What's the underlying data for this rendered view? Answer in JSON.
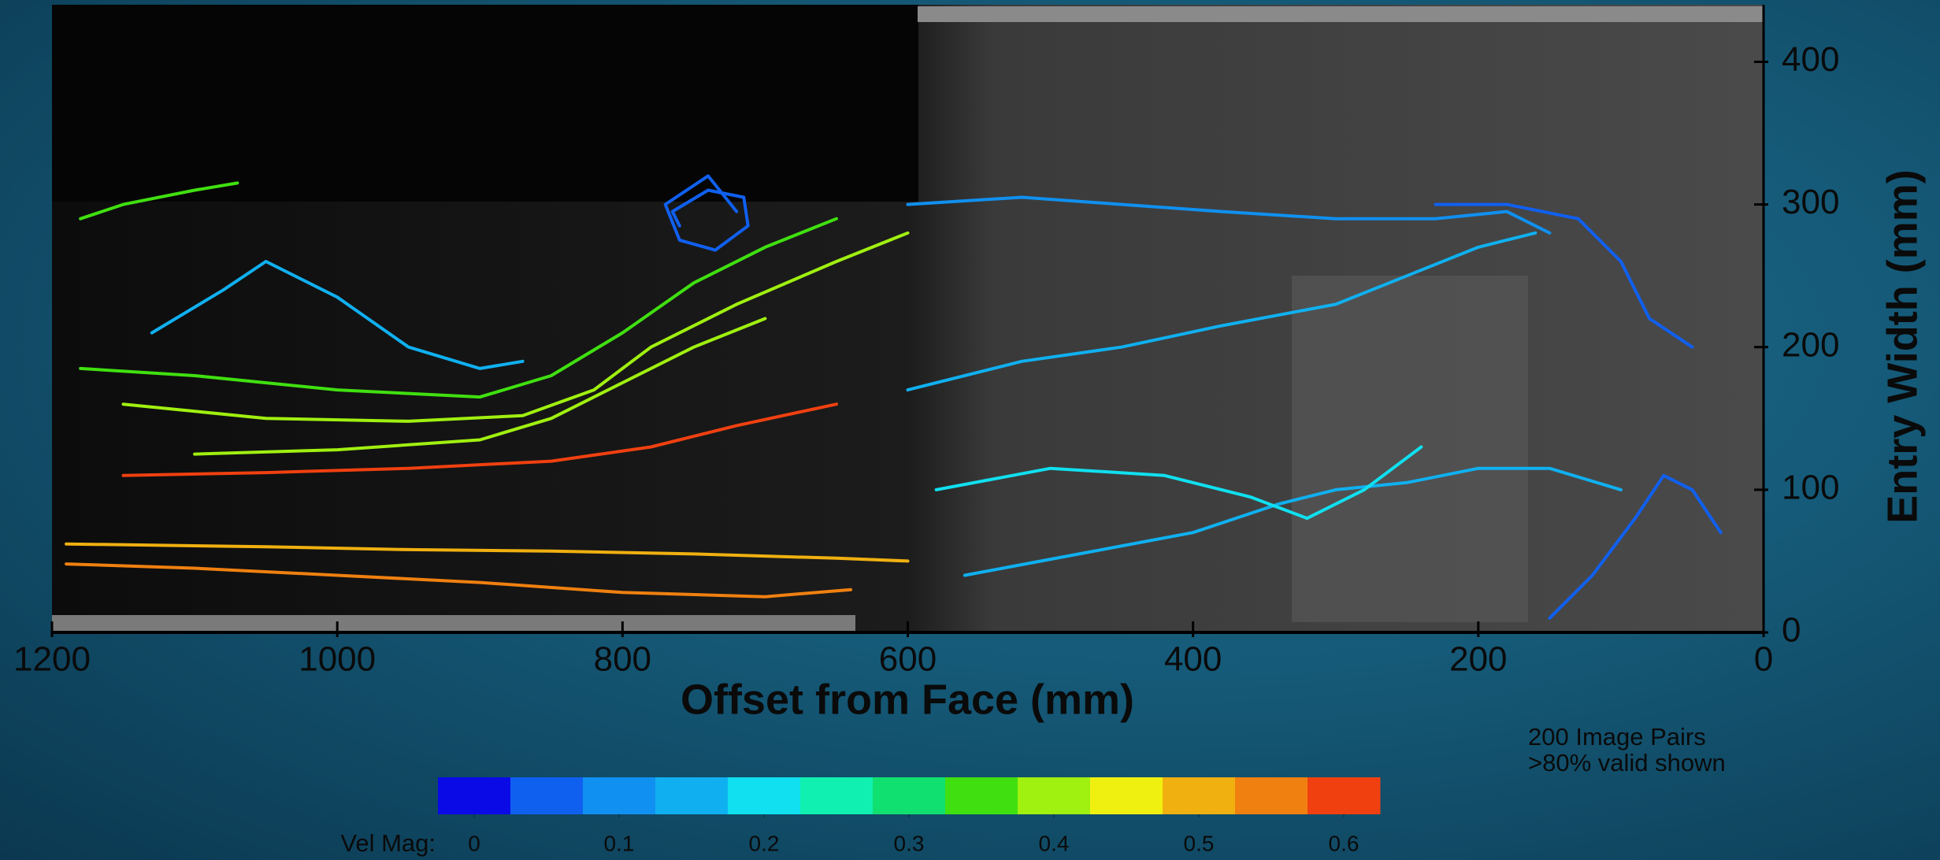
{
  "chart_data": {
    "type": "streamline",
    "xlabel": "Offset from Face (mm)",
    "ylabel": "Entry Width (mm)",
    "xlim": [
      1200,
      0
    ],
    "ylim": [
      0,
      440
    ],
    "xticks": [
      1200,
      1000,
      800,
      600,
      400,
      200,
      0
    ],
    "yticks": [
      0,
      100,
      200,
      300,
      400
    ],
    "streamlines": [
      {
        "color": "#f08010",
        "x": [
          1190,
          1100,
          1000,
          900,
          800,
          700,
          640
        ],
        "y": [
          48,
          45,
          40,
          35,
          28,
          25,
          30
        ]
      },
      {
        "color": "#f0b010",
        "x": [
          1190,
          1050,
          950,
          850,
          750,
          650,
          600
        ],
        "y": [
          62,
          60,
          58,
          57,
          55,
          52,
          50
        ]
      },
      {
        "color": "#f04010",
        "x": [
          1150,
          1050,
          950,
          850,
          780,
          720,
          650
        ],
        "y": [
          110,
          112,
          115,
          120,
          130,
          145,
          160
        ]
      },
      {
        "color": "#a0f010",
        "x": [
          1100,
          1000,
          900,
          850,
          800,
          750,
          700
        ],
        "y": [
          125,
          128,
          135,
          150,
          175,
          200,
          220
        ]
      },
      {
        "color": "#40e010",
        "x": [
          1180,
          1100,
          1000,
          900,
          850,
          800,
          750,
          700,
          650
        ],
        "y": [
          185,
          180,
          170,
          165,
          180,
          210,
          245,
          270,
          290
        ]
      },
      {
        "color": "#a0f010",
        "x": [
          1150,
          1050,
          950,
          870,
          820,
          780,
          720,
          650,
          600
        ],
        "y": [
          160,
          150,
          148,
          152,
          170,
          200,
          230,
          260,
          280
        ]
      },
      {
        "color": "#10b0f0",
        "x": [
          1130,
          1080,
          1050,
          1000,
          950,
          900,
          870
        ],
        "y": [
          210,
          240,
          260,
          235,
          200,
          185,
          190
        ]
      },
      {
        "color": "#1060f0",
        "x": [
          720,
          740,
          770,
          760,
          735,
          712,
          715,
          740,
          765,
          760
        ],
        "y": [
          295,
          320,
          300,
          275,
          268,
          285,
          305,
          310,
          295,
          285
        ]
      },
      {
        "color": "#1090f0",
        "x": [
          600,
          520,
          450,
          380,
          300,
          230,
          180,
          150
        ],
        "y": [
          300,
          305,
          300,
          295,
          290,
          290,
          295,
          280
        ]
      },
      {
        "color": "#10b0f0",
        "x": [
          600,
          520,
          450,
          380,
          300,
          250,
          200,
          160
        ],
        "y": [
          170,
          190,
          200,
          215,
          230,
          250,
          270,
          280
        ]
      },
      {
        "color": "#10b0f0",
        "x": [
          560,
          480,
          400,
          340,
          300,
          250,
          200,
          150,
          100
        ],
        "y": [
          40,
          55,
          70,
          90,
          100,
          105,
          115,
          115,
          100
        ]
      },
      {
        "color": "#1060f0",
        "x": [
          150,
          120,
          90,
          70,
          50,
          30
        ],
        "y": [
          10,
          40,
          80,
          110,
          100,
          70
        ]
      },
      {
        "color": "#10e0f0",
        "x": [
          580,
          500,
          420,
          360,
          320,
          280,
          240
        ],
        "y": [
          100,
          115,
          110,
          95,
          80,
          100,
          130
        ]
      },
      {
        "color": "#40e010",
        "x": [
          1180,
          1150,
          1100,
          1070
        ],
        "y": [
          290,
          300,
          310,
          315
        ]
      },
      {
        "color": "#1060f0",
        "x": [
          230,
          180,
          130,
          100,
          80,
          50
        ],
        "y": [
          300,
          300,
          290,
          260,
          220,
          200
        ]
      }
    ],
    "colorbar": {
      "label": "Vel Mag:",
      "lim": [
        -0.025,
        0.625
      ],
      "colors": [
        "#0a0ae6",
        "#1060f0",
        "#1090f0",
        "#10b0f0",
        "#10e0f0",
        "#10f0b0",
        "#10e070",
        "#40e010",
        "#a0f010",
        "#f0f010",
        "#f0b010",
        "#f08010",
        "#f04010"
      ],
      "ticks": [
        0,
        0.1,
        0.2,
        0.3,
        0.4,
        0.5,
        0.6
      ]
    },
    "annotation": [
      "200 Image Pairs",
      ">80% valid shown"
    ]
  }
}
